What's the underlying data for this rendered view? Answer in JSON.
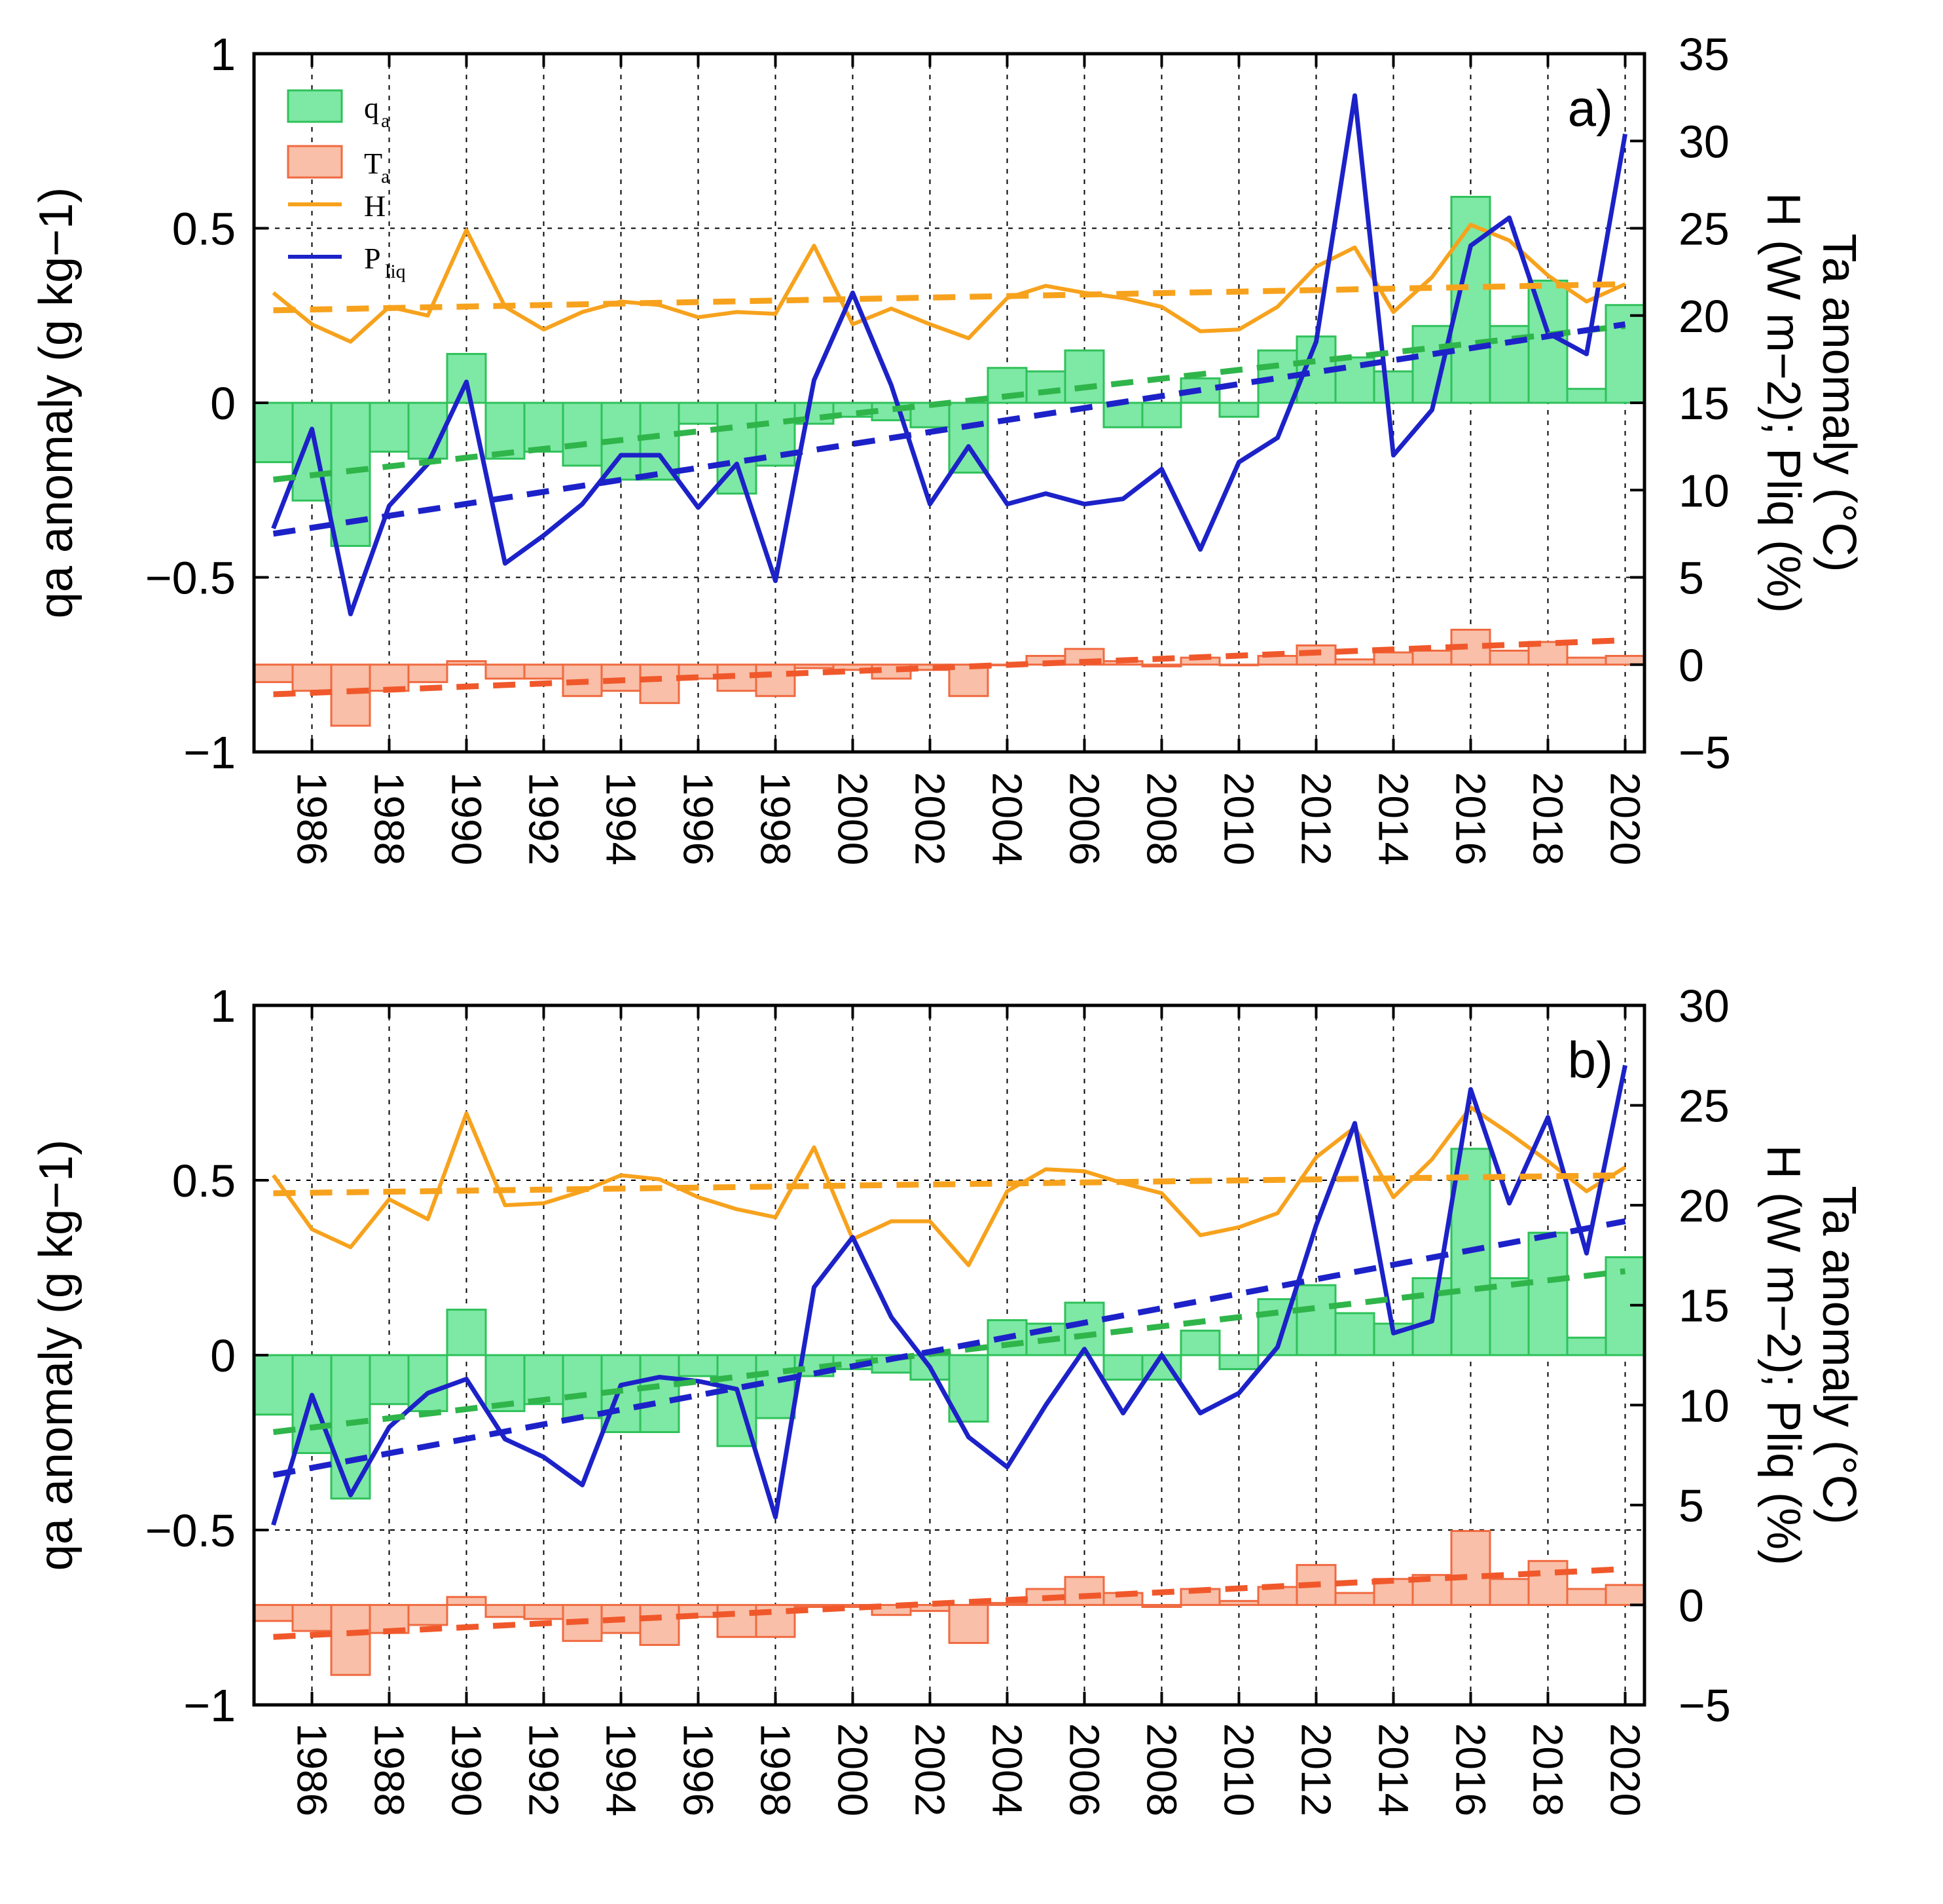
{
  "chart_data": [
    {
      "type": "bar+line",
      "panel_label": "a)",
      "ylabel_left": "qa anomaly (g kg−1)",
      "ylabel_right_line1": "Ta anomaly (°C)",
      "ylabel_right_line2": "H (W m−2); Pliq (%)",
      "ylim_left": [
        -1,
        1
      ],
      "ylim_right": [
        -5,
        35
      ],
      "left_ticks": [
        "1",
        "0.5",
        "0",
        "−0.5",
        "−1"
      ],
      "right_ticks": [
        "35",
        "30",
        "25",
        "20",
        "15",
        "10",
        "5",
        "0",
        "−5"
      ],
      "x_tick_labels": [
        "1986",
        "1988",
        "1990",
        "1992",
        "1994",
        "1996",
        "1998",
        "2000",
        "2002",
        "2004",
        "2006",
        "2008",
        "2010",
        "2012",
        "2014",
        "2016",
        "2018",
        "2020"
      ],
      "years": [
        1985,
        1986,
        1987,
        1988,
        1989,
        1990,
        1991,
        1992,
        1993,
        1994,
        1995,
        1996,
        1997,
        1998,
        1999,
        2000,
        2001,
        2002,
        2003,
        2004,
        2005,
        2006,
        2007,
        2008,
        2009,
        2010,
        2011,
        2012,
        2013,
        2014,
        2015,
        2016,
        2017,
        2018,
        2019,
        2020
      ],
      "legend": [
        {
          "label": "q",
          "sub": "a"
        },
        {
          "label": "T",
          "sub": "a"
        },
        {
          "label": "H",
          "sub": ""
        },
        {
          "label": "P",
          "sub": "liq"
        }
      ],
      "series": [
        {
          "name": "qa",
          "axis": "left",
          "kind": "bar",
          "color": "#7ee8a5",
          "edge": "#2fc15a",
          "values": [
            -0.17,
            -0.28,
            -0.41,
            -0.14,
            -0.16,
            0.14,
            -0.16,
            -0.14,
            -0.18,
            -0.22,
            -0.22,
            -0.06,
            -0.26,
            -0.18,
            -0.06,
            -0.04,
            -0.05,
            -0.07,
            -0.2,
            0.1,
            0.09,
            0.15,
            -0.07,
            -0.07,
            0.07,
            -0.04,
            0.15,
            0.19,
            0.13,
            0.09,
            0.22,
            0.59,
            0.22,
            0.35,
            0.04,
            0.28
          ]
        },
        {
          "name": "Ta",
          "axis": "right",
          "kind": "bar",
          "color": "#f9bfa8",
          "edge": "#f06a40",
          "values": [
            -1.0,
            -1.5,
            -3.5,
            -1.5,
            -1.0,
            0.2,
            -0.8,
            -0.8,
            -1.8,
            -1.5,
            -2.2,
            -0.8,
            -1.5,
            -1.8,
            -0.2,
            -0.3,
            -0.8,
            -0.3,
            -1.8,
            0.0,
            0.5,
            0.9,
            0.2,
            -0.1,
            0.4,
            0.0,
            0.5,
            1.1,
            0.3,
            0.7,
            0.8,
            2.0,
            0.8,
            1.3,
            0.4,
            0.5
          ]
        },
        {
          "name": "H",
          "axis": "right",
          "kind": "line",
          "color": "#f7a21d",
          "values": [
            21.3,
            19.5,
            18.5,
            20.5,
            20.0,
            24.9,
            20.5,
            19.2,
            20.2,
            20.8,
            20.6,
            19.9,
            20.2,
            20.1,
            24.0,
            19.5,
            20.4,
            19.5,
            18.7,
            21.0,
            21.7,
            21.3,
            21.0,
            20.5,
            19.1,
            19.2,
            20.5,
            22.8,
            23.9,
            20.2,
            22.2,
            25.2,
            24.3,
            22.3,
            20.8,
            21.8
          ]
        },
        {
          "name": "Pliq",
          "axis": "right",
          "kind": "line",
          "color": "#1c22c8",
          "values": [
            7.8,
            13.5,
            2.9,
            9.1,
            11.5,
            16.2,
            5.8,
            7.4,
            9.2,
            12.0,
            12.0,
            9.0,
            11.5,
            4.8,
            16.3,
            21.3,
            16.0,
            9.2,
            12.5,
            9.2,
            9.8,
            9.2,
            9.5,
            11.2,
            6.6,
            11.6,
            13.0,
            18.5,
            32.6,
            12.0,
            14.6,
            24.0,
            25.6,
            19.0,
            17.8,
            30.4
          ]
        },
        {
          "name": "qa trend",
          "axis": "left",
          "kind": "trend",
          "color": "#2fb54a",
          "from": [
            1985,
            -0.22
          ],
          "to": [
            2020,
            0.22
          ]
        },
        {
          "name": "Ta trend",
          "axis": "right",
          "kind": "trend",
          "color": "#f0582b",
          "from": [
            1985,
            -1.7
          ],
          "to": [
            2020,
            1.4
          ]
        },
        {
          "name": "H trend",
          "axis": "right",
          "kind": "trend",
          "color": "#f7a21d",
          "from": [
            1985,
            20.3
          ],
          "to": [
            2020,
            21.8
          ]
        },
        {
          "name": "Pliq trend",
          "axis": "right",
          "kind": "trend",
          "color": "#1c22c8",
          "from": [
            1985,
            7.5
          ],
          "to": [
            2020,
            19.5
          ]
        }
      ]
    },
    {
      "type": "bar+line",
      "panel_label": "b)",
      "ylabel_left": "qa anomaly (g kg−1)",
      "ylabel_right_line1": "Ta anomaly (°C)",
      "ylabel_right_line2": "H (W m−2); Pliq (%)",
      "ylim_left": [
        -1,
        1
      ],
      "ylim_right": [
        -5,
        30
      ],
      "left_ticks": [
        "1",
        "0.5",
        "0",
        "−0.5",
        "−1"
      ],
      "right_ticks": [
        "30",
        "25",
        "20",
        "15",
        "10",
        "5",
        "0",
        "−5"
      ],
      "x_tick_labels": [
        "1986",
        "1988",
        "1990",
        "1992",
        "1994",
        "1996",
        "1998",
        "2000",
        "2002",
        "2004",
        "2006",
        "2008",
        "2010",
        "2012",
        "2014",
        "2016",
        "2018",
        "2020"
      ],
      "years": [
        1985,
        1986,
        1987,
        1988,
        1989,
        1990,
        1991,
        1992,
        1993,
        1994,
        1995,
        1996,
        1997,
        1998,
        1999,
        2000,
        2001,
        2002,
        2003,
        2004,
        2005,
        2006,
        2007,
        2008,
        2009,
        2010,
        2011,
        2012,
        2013,
        2014,
        2015,
        2016,
        2017,
        2018,
        2019,
        2020
      ],
      "series": [
        {
          "name": "qa",
          "axis": "left",
          "kind": "bar",
          "color": "#7ee8a5",
          "edge": "#2fc15a",
          "values": [
            -0.17,
            -0.28,
            -0.41,
            -0.14,
            -0.16,
            0.13,
            -0.16,
            -0.14,
            -0.18,
            -0.22,
            -0.22,
            -0.06,
            -0.26,
            -0.18,
            -0.06,
            -0.04,
            -0.05,
            -0.07,
            -0.19,
            0.1,
            0.09,
            0.15,
            -0.07,
            -0.07,
            0.07,
            -0.04,
            0.16,
            0.2,
            0.12,
            0.09,
            0.22,
            0.59,
            0.22,
            0.35,
            0.05,
            0.28
          ]
        },
        {
          "name": "Ta",
          "axis": "right",
          "kind": "bar",
          "color": "#f9bfa8",
          "edge": "#f06a40",
          "values": [
            -0.8,
            -1.3,
            -3.5,
            -1.4,
            -1.0,
            0.4,
            -0.6,
            -0.7,
            -1.8,
            -1.4,
            -2.0,
            -0.6,
            -1.6,
            -1.6,
            -0.1,
            -0.1,
            -0.5,
            -0.3,
            -1.9,
            0.1,
            0.8,
            1.4,
            0.6,
            -0.1,
            0.8,
            0.2,
            0.9,
            2.0,
            0.6,
            1.3,
            1.5,
            3.7,
            1.3,
            2.2,
            0.8,
            1.0
          ]
        },
        {
          "name": "H",
          "axis": "right",
          "kind": "line",
          "color": "#f7a21d",
          "values": [
            21.5,
            18.8,
            17.9,
            20.3,
            19.3,
            24.6,
            20.0,
            20.1,
            20.7,
            21.5,
            21.3,
            20.4,
            19.8,
            19.4,
            22.9,
            18.3,
            19.2,
            19.2,
            17.0,
            20.7,
            21.8,
            21.7,
            21.1,
            20.6,
            18.5,
            18.9,
            19.6,
            22.4,
            23.9,
            20.4,
            22.3,
            24.9,
            23.6,
            22.2,
            20.7,
            21.9
          ]
        },
        {
          "name": "Pliq",
          "axis": "right",
          "kind": "line",
          "color": "#1c22c8",
          "values": [
            4.0,
            10.5,
            5.5,
            8.9,
            10.6,
            11.3,
            8.3,
            7.4,
            6.0,
            11.0,
            11.4,
            11.2,
            10.8,
            4.4,
            15.9,
            18.4,
            14.4,
            11.9,
            8.4,
            6.9,
            10.0,
            12.8,
            9.6,
            12.5,
            9.6,
            10.6,
            12.9,
            19.0,
            24.1,
            13.6,
            14.2,
            25.8,
            20.1,
            24.4,
            17.6,
            27.0
          ]
        },
        {
          "name": "qa trend",
          "axis": "left",
          "kind": "trend",
          "color": "#2fb54a",
          "from": [
            1985,
            -0.22
          ],
          "to": [
            2020,
            0.24
          ]
        },
        {
          "name": "Ta trend",
          "axis": "right",
          "kind": "trend",
          "color": "#f0582b",
          "from": [
            1985,
            -1.6
          ],
          "to": [
            2020,
            1.8
          ]
        },
        {
          "name": "H trend",
          "axis": "right",
          "kind": "trend",
          "color": "#f7a21d",
          "from": [
            1985,
            20.6
          ],
          "to": [
            2020,
            21.5
          ]
        },
        {
          "name": "Pliq trend",
          "axis": "right",
          "kind": "trend",
          "color": "#1c22c8",
          "from": [
            1985,
            6.5
          ],
          "to": [
            2020,
            19.2
          ]
        }
      ]
    }
  ]
}
